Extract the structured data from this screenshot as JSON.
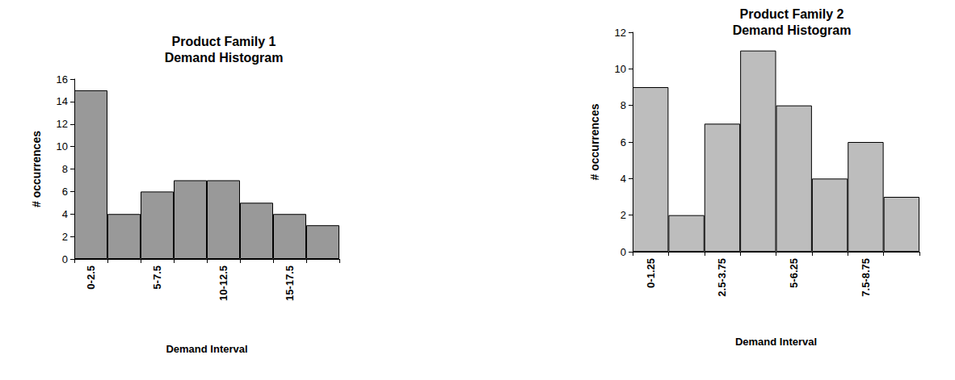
{
  "chart_data": [
    {
      "type": "bar",
      "title": "Product Family 1",
      "subtitle": "Demand Histogram",
      "x_label": "Demand Interval",
      "y_label": "# occurrences",
      "categories": [
        "0-2.5",
        null,
        "5-7.5",
        null,
        "10-12.5",
        null,
        "15-17.5",
        null
      ],
      "values": [
        15,
        4,
        6,
        7,
        7,
        5,
        4,
        3
      ],
      "color": "#999999",
      "ylim": [
        0,
        16
      ],
      "yticks": [
        0,
        2,
        4,
        6,
        8,
        10,
        12,
        14,
        16
      ],
      "grid": false
    },
    {
      "type": "bar",
      "title": "Product Family 2",
      "subtitle": "Demand Histogram",
      "x_label": "Demand Interval",
      "y_label": "# occurrences",
      "categories": [
        "0-1.25",
        null,
        "2.5-3.75",
        null,
        "5-6.25",
        null,
        "7.5-8.75",
        null
      ],
      "values": [
        9,
        2,
        7,
        11,
        8,
        4,
        6,
        3
      ],
      "color": "#bdbdbd",
      "ylim": [
        0,
        12
      ],
      "yticks": [
        0,
        2,
        4,
        6,
        8,
        10,
        12
      ],
      "grid": false
    }
  ]
}
